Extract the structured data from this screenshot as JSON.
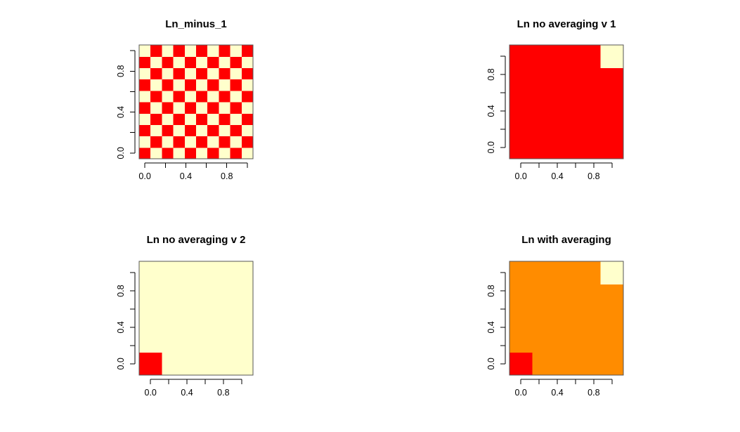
{
  "palette": {
    "red": "#ff0000",
    "orange": "#ff8c00",
    "cream": "#ffffcc"
  },
  "chart_data": [
    {
      "type": "heatmap",
      "title": "Ln_minus_1",
      "grid_size": 10,
      "xlim": [
        -0.0556,
        1.0556
      ],
      "ylim": [
        -0.0556,
        1.0556
      ],
      "xticks": [
        0.0,
        0.2,
        0.4,
        0.6,
        0.8,
        1.0
      ],
      "xtick_labels": [
        "0.0",
        "",
        "0.4",
        "",
        "0.8",
        ""
      ],
      "yticks": [
        0.0,
        0.2,
        0.4,
        0.6,
        0.8,
        1.0
      ],
      "ytick_labels": [
        "0.0",
        "",
        "0.4",
        "",
        "0.8",
        ""
      ],
      "pattern": "checkerboard",
      "checker_colors": [
        "red",
        "cream"
      ],
      "cells": []
    },
    {
      "type": "heatmap",
      "title": "Ln no averaging v 1",
      "grid_size": 5,
      "xlim": [
        -0.125,
        1.125
      ],
      "ylim": [
        -0.125,
        1.125
      ],
      "xticks": [
        0.0,
        0.2,
        0.4,
        0.6,
        0.8,
        1.0
      ],
      "xtick_labels": [
        "0.0",
        "",
        "0.4",
        "",
        "0.8",
        ""
      ],
      "yticks": [
        0.0,
        0.2,
        0.4,
        0.6,
        0.8,
        1.0
      ],
      "ytick_labels": [
        "0.0",
        "",
        "0.4",
        "",
        "0.8",
        ""
      ],
      "background": "red",
      "cells": [
        {
          "col": 4,
          "row": 4,
          "color": "cream"
        }
      ]
    },
    {
      "type": "heatmap",
      "title": "Ln no averaging v 2",
      "grid_size": 5,
      "xlim": [
        -0.125,
        1.125
      ],
      "ylim": [
        -0.125,
        1.125
      ],
      "xticks": [
        0.0,
        0.2,
        0.4,
        0.6,
        0.8,
        1.0
      ],
      "xtick_labels": [
        "0.0",
        "",
        "0.4",
        "",
        "0.8",
        ""
      ],
      "yticks": [
        0.0,
        0.2,
        0.4,
        0.6,
        0.8,
        1.0
      ],
      "ytick_labels": [
        "0.0",
        "",
        "0.4",
        "",
        "0.8",
        ""
      ],
      "background": "cream",
      "cells": [
        {
          "col": 0,
          "row": 0,
          "color": "red"
        }
      ]
    },
    {
      "type": "heatmap",
      "title": "Ln with averaging",
      "grid_size": 5,
      "xlim": [
        -0.125,
        1.125
      ],
      "ylim": [
        -0.125,
        1.125
      ],
      "xticks": [
        0.0,
        0.2,
        0.4,
        0.6,
        0.8,
        1.0
      ],
      "xtick_labels": [
        "0.0",
        "",
        "0.4",
        "",
        "0.8",
        ""
      ],
      "yticks": [
        0.0,
        0.2,
        0.4,
        0.6,
        0.8,
        1.0
      ],
      "ytick_labels": [
        "0.0",
        "",
        "0.4",
        "",
        "0.8",
        ""
      ],
      "background": "orange",
      "cells": [
        {
          "col": 4,
          "row": 4,
          "color": "cream"
        },
        {
          "col": 0,
          "row": 0,
          "color": "red"
        }
      ]
    }
  ]
}
